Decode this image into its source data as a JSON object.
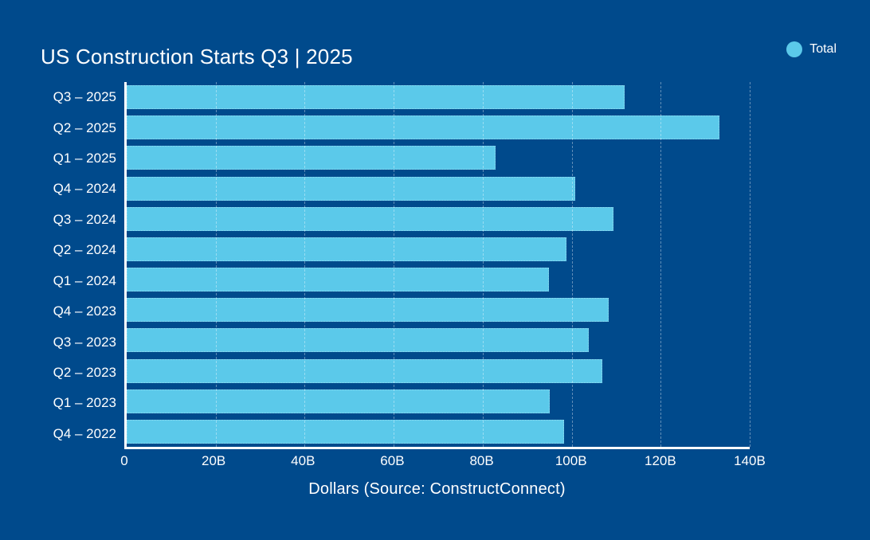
{
  "title": "US Construction Starts Q3 | 2025",
  "legend": {
    "items": [
      {
        "label": "Total",
        "marker_color": "#5BC9EA"
      }
    ]
  },
  "colors": {
    "background": "#004A8C",
    "bar": "#5BC9EA",
    "text": "#FFFFFF",
    "axis": "#FFFFFF",
    "gridline": "rgba(255,255,255,0.38)"
  },
  "chart_data": {
    "type": "bar",
    "orientation": "horizontal",
    "title": "US Construction Starts Q3 | 2025",
    "xlabel": "Dollars (Source: ConstructConnect)",
    "ylabel": "",
    "unit": "billions of dollars",
    "categories": [
      "Q3 – 2025",
      "Q2 – 2025",
      "Q1 – 2025",
      "Q4 – 2024",
      "Q3 – 2024",
      "Q2 – 2024",
      "Q1 – 2024",
      "Q4 – 2023",
      "Q3 – 2023",
      "Q2 – 2023",
      "Q1 – 2023",
      "Q4 – 2022"
    ],
    "series": [
      {
        "name": "Total",
        "values": [
          111.9,
          133.2,
          82.9,
          100.8,
          109.3,
          98.9,
          94.9,
          108.3,
          103.9,
          106.9,
          95.1,
          98.3
        ]
      }
    ],
    "xlim": [
      0,
      140
    ],
    "xticks": [
      "0",
      "20B",
      "40B",
      "60B",
      "80B",
      "100B",
      "120B",
      "140B"
    ],
    "grid": true,
    "gridline_style": "dashed-vertical",
    "legend_position": "top-right"
  }
}
